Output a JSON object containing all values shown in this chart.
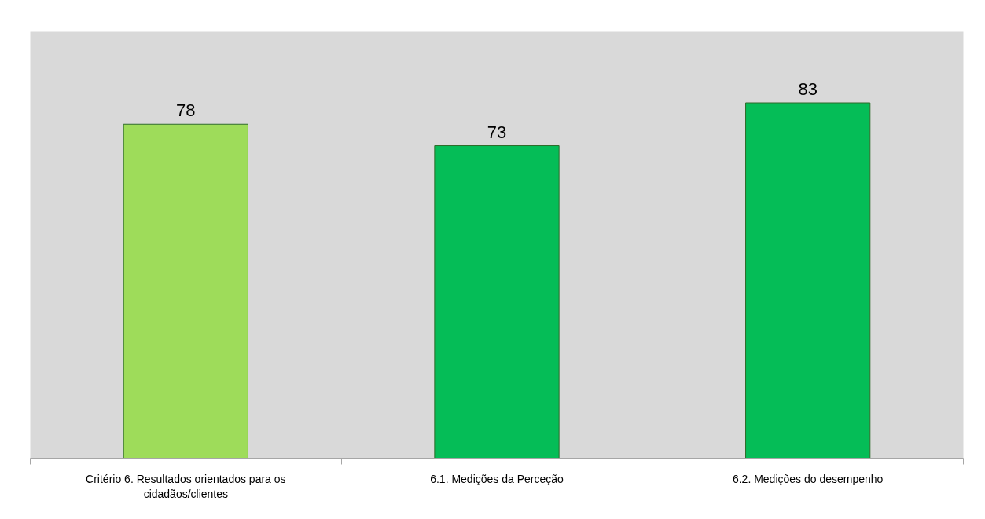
{
  "chart_data": {
    "type": "bar",
    "categories": [
      "Critério 6. Resultados orientados para os cidadãos/clientes",
      "6.1. Medições da Perceção",
      "6.2. Medições do desempenho"
    ],
    "values": [
      78,
      73,
      83
    ],
    "colors": [
      "#9edc5a",
      "#05bd57",
      "#05bd57"
    ],
    "data_labels": true,
    "grid": false
  }
}
